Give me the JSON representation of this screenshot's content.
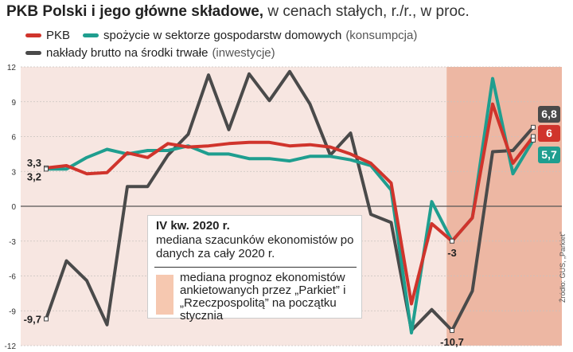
{
  "header": {
    "title_bold": "PKB Polski i jego główne składowe,",
    "title_light": " w cenach stałych, r./r., w proc."
  },
  "legend": {
    "gdp": "PKB",
    "consumption": "spożycie w sektorze gospodarstw domowych",
    "consumption_note": "(konsumpcja)",
    "investment": "nakłady brutto na środki trwałe",
    "investment_note": "(inwestycje)"
  },
  "annotation": {
    "heading": "IV kw. 2020 r.",
    "text": "mediana szacunków ekonomistów po danych za cały 2020 r.",
    "forecast_label": "mediana prognoz ekonomistów ankietowanych przez „Parkiet” i „Rzeczpospolitą” na początku stycznia"
  },
  "source": "Źródło: GUS, „Parkiet”",
  "colors": {
    "gdp": "#d0342c",
    "consumption": "#1f9e8f",
    "investment": "#4a4a4a",
    "background": "#f7e6e1",
    "forecast_band": "#edb7a3",
    "forecast_swatch": "#f6c8b0"
  },
  "chart_data": {
    "type": "line",
    "ylim": [
      -12,
      12
    ],
    "yticks": [
      "12",
      "9",
      "6",
      "3",
      "0",
      "-3",
      "-6",
      "-9",
      "-12"
    ],
    "xlabel": "",
    "ylabel": "",
    "forecast_from_index": 20,
    "series": [
      {
        "name": "PKB",
        "color": "#d0342c",
        "values": [
          3.3,
          3.5,
          2.8,
          2.9,
          4.6,
          4.2,
          5.4,
          5.1,
          5.2,
          5.4,
          5.5,
          5.5,
          5.2,
          5.3,
          5.1,
          4.5,
          3.7,
          2.0,
          -8.4,
          -1.5,
          -3.0,
          -1.0,
          8.8,
          3.7,
          6.0
        ]
      },
      {
        "name": "spożycie w sektorze gospodarstw domowych",
        "color": "#1f9e8f",
        "values": [
          3.2,
          3.2,
          4.2,
          4.9,
          4.5,
          4.8,
          4.8,
          5.2,
          4.5,
          4.5,
          4.1,
          4.1,
          3.9,
          4.3,
          4.3,
          4.0,
          3.5,
          1.4,
          -10.9,
          0.4,
          -3.0,
          -1.0,
          11.0,
          2.8,
          5.7
        ]
      },
      {
        "name": "nakłady brutto na środki trwałe",
        "color": "#4a4a4a",
        "values": [
          -9.7,
          -4.7,
          -6.4,
          -10.2,
          1.7,
          1.7,
          4.4,
          6.2,
          11.3,
          6.6,
          11.4,
          9.1,
          11.6,
          8.8,
          4.4,
          6.3,
          -0.7,
          -1.4,
          -10.7,
          -8.9,
          -10.7,
          -7.3,
          4.7,
          4.8,
          6.8
        ]
      }
    ],
    "data_labels": [
      {
        "series": 0,
        "index": 0,
        "text": "3,3"
      },
      {
        "series": 1,
        "index": 0,
        "text": "3,2"
      },
      {
        "series": 2,
        "index": 0,
        "text": "-9,7"
      },
      {
        "series": 0,
        "index": 20,
        "text": "-3"
      },
      {
        "series": 2,
        "index": 20,
        "text": "-10,7"
      }
    ],
    "end_labels": [
      {
        "series": 2,
        "text": "6,8"
      },
      {
        "series": 0,
        "text": "6"
      },
      {
        "series": 1,
        "text": "5,7"
      }
    ]
  }
}
